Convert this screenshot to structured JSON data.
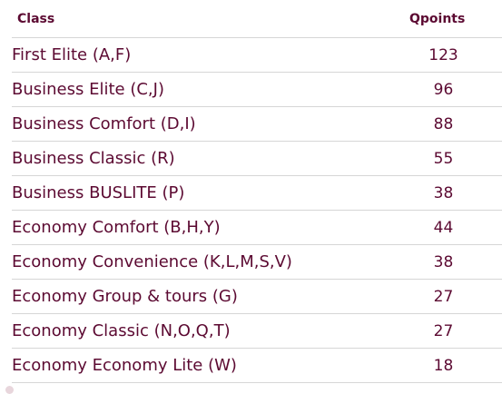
{
  "table": {
    "headers": {
      "class": "Class",
      "points": "Qpoints"
    },
    "rows": [
      {
        "class": "First Elite (A,F)",
        "points": "123"
      },
      {
        "class": "Business Elite (C,J)",
        "points": "96"
      },
      {
        "class": "Business Comfort (D,I)",
        "points": "88"
      },
      {
        "class": "Business Classic (R)",
        "points": "55"
      },
      {
        "class": "Business BUSLITE (P)",
        "points": "38"
      },
      {
        "class": "Economy Comfort (B,H,Y)",
        "points": "44"
      },
      {
        "class": "Economy Convenience (K,L,M,S,V)",
        "points": "38"
      },
      {
        "class": "Economy Group & tours (G)",
        "points": "27"
      },
      {
        "class": "Economy Classic (N,O,Q,T)",
        "points": "27"
      },
      {
        "class": "Economy Economy Lite (W)",
        "points": "18"
      }
    ]
  },
  "colors": {
    "text": "#5c0a32",
    "divider": "#d6d6d6"
  }
}
